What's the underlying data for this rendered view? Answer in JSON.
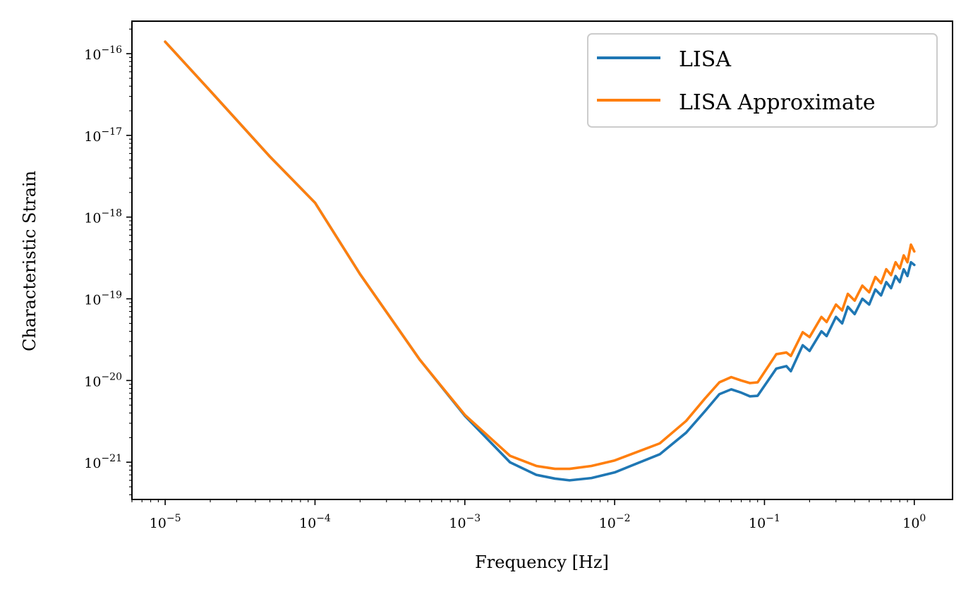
{
  "chart_data": {
    "type": "line",
    "title": "",
    "xlabel": "Frequency [Hz]",
    "ylabel": "Characteristic Strain",
    "xscale": "log",
    "yscale": "log",
    "xlim": [
      6e-06,
      1.8
    ],
    "ylim": [
      3.5e-22,
      2.5e-16
    ],
    "xticks": [
      {
        "base": "10",
        "exp": "−5"
      },
      {
        "base": "10",
        "exp": "−4"
      },
      {
        "base": "10",
        "exp": "−3"
      },
      {
        "base": "10",
        "exp": "−2"
      },
      {
        "base": "10",
        "exp": "−1"
      },
      {
        "base": "10",
        "exp": "0"
      }
    ],
    "yticks": [
      {
        "base": "10",
        "exp": "−21"
      },
      {
        "base": "10",
        "exp": "−20"
      },
      {
        "base": "10",
        "exp": "−19"
      },
      {
        "base": "10",
        "exp": "−18"
      },
      {
        "base": "10",
        "exp": "−17"
      },
      {
        "base": "10",
        "exp": "−16"
      }
    ],
    "grid": false,
    "legend_position": "top-right",
    "series": [
      {
        "name": "LISA",
        "color": "#1f77b4",
        "points": [
          [
            1e-05,
            1.4e-16
          ],
          [
            2e-05,
            3.5e-17
          ],
          [
            5e-05,
            5.5e-18
          ],
          [
            0.0001,
            1.5e-18
          ],
          [
            0.0002,
            2e-19
          ],
          [
            0.0005,
            1.8e-20
          ],
          [
            0.001,
            3.7e-21
          ],
          [
            0.002,
            1e-21
          ],
          [
            0.003,
            7e-22
          ],
          [
            0.004,
            6.3e-22
          ],
          [
            0.005,
            6e-22
          ],
          [
            0.007,
            6.4e-22
          ],
          [
            0.01,
            7.5e-22
          ],
          [
            0.02,
            1.25e-21
          ],
          [
            0.03,
            2.3e-21
          ],
          [
            0.04,
            4.2e-21
          ],
          [
            0.05,
            6.8e-21
          ],
          [
            0.06,
            7.8e-21
          ],
          [
            0.07,
            7.1e-21
          ],
          [
            0.08,
            6.4e-21
          ],
          [
            0.09,
            6.5e-21
          ],
          [
            0.12,
            1.4e-20
          ],
          [
            0.14,
            1.5e-20
          ],
          [
            0.15,
            1.3e-20
          ],
          [
            0.18,
            2.7e-20
          ],
          [
            0.2,
            2.3e-20
          ],
          [
            0.24,
            4e-20
          ],
          [
            0.26,
            3.5e-20
          ],
          [
            0.3,
            6e-20
          ],
          [
            0.33,
            5e-20
          ],
          [
            0.36,
            8e-20
          ],
          [
            0.4,
            6.5e-20
          ],
          [
            0.45,
            1e-19
          ],
          [
            0.5,
            8.5e-20
          ],
          [
            0.55,
            1.3e-19
          ],
          [
            0.6,
            1.1e-19
          ],
          [
            0.65,
            1.6e-19
          ],
          [
            0.7,
            1.35e-19
          ],
          [
            0.75,
            1.9e-19
          ],
          [
            0.8,
            1.6e-19
          ],
          [
            0.85,
            2.3e-19
          ],
          [
            0.9,
            1.9e-19
          ],
          [
            0.95,
            2.8e-19
          ],
          [
            1.0,
            2.6e-19
          ]
        ]
      },
      {
        "name": "LISA Approximate",
        "color": "#ff7f0e",
        "points": [
          [
            1e-05,
            1.4e-16
          ],
          [
            2e-05,
            3.5e-17
          ],
          [
            5e-05,
            5.5e-18
          ],
          [
            0.0001,
            1.5e-18
          ],
          [
            0.0002,
            2e-19
          ],
          [
            0.0005,
            1.8e-20
          ],
          [
            0.001,
            3.8e-21
          ],
          [
            0.002,
            1.2e-21
          ],
          [
            0.003,
            9e-22
          ],
          [
            0.004,
            8.3e-22
          ],
          [
            0.005,
            8.3e-22
          ],
          [
            0.007,
            9e-22
          ],
          [
            0.01,
            1.05e-21
          ],
          [
            0.02,
            1.7e-21
          ],
          [
            0.03,
            3.2e-21
          ],
          [
            0.04,
            6e-21
          ],
          [
            0.05,
            9.5e-21
          ],
          [
            0.06,
            1.1e-20
          ],
          [
            0.07,
            1e-20
          ],
          [
            0.08,
            9.3e-21
          ],
          [
            0.09,
            9.5e-21
          ],
          [
            0.12,
            2.1e-20
          ],
          [
            0.14,
            2.2e-20
          ],
          [
            0.15,
            2e-20
          ],
          [
            0.18,
            3.9e-20
          ],
          [
            0.2,
            3.4e-20
          ],
          [
            0.24,
            6e-20
          ],
          [
            0.26,
            5.2e-20
          ],
          [
            0.3,
            8.5e-20
          ],
          [
            0.33,
            7.2e-20
          ],
          [
            0.36,
            1.15e-19
          ],
          [
            0.4,
            9.5e-20
          ],
          [
            0.45,
            1.45e-19
          ],
          [
            0.5,
            1.2e-19
          ],
          [
            0.55,
            1.85e-19
          ],
          [
            0.6,
            1.55e-19
          ],
          [
            0.65,
            2.3e-19
          ],
          [
            0.7,
            1.95e-19
          ],
          [
            0.75,
            2.8e-19
          ],
          [
            0.8,
            2.35e-19
          ],
          [
            0.85,
            3.4e-19
          ],
          [
            0.9,
            2.8e-19
          ],
          [
            0.95,
            4.6e-19
          ],
          [
            1.0,
            3.8e-19
          ]
        ]
      }
    ]
  }
}
